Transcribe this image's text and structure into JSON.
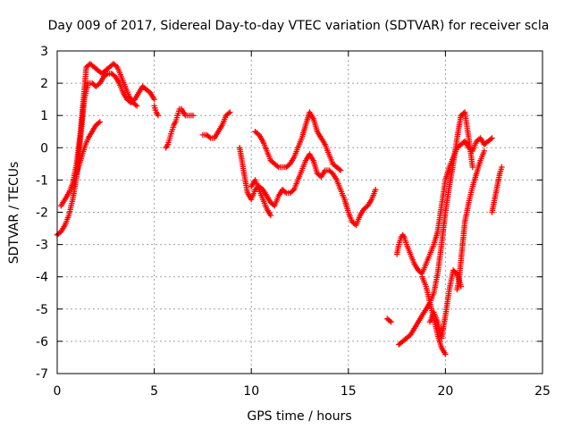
{
  "chart_data": {
    "type": "scatter",
    "title": "Day 009 of 2017, Sidereal Day-to-day VTEC variation (SDTVAR) for receiver scla",
    "xlabel": "GPS time / hours",
    "ylabel": "SDTVAR / TECUs",
    "xlim": [
      0,
      25
    ],
    "ylim": [
      -7,
      3
    ],
    "xticks": [
      "0",
      "5",
      "10",
      "15",
      "20",
      "25"
    ],
    "yticks": [
      "3",
      "2",
      "1",
      "0",
      "-1",
      "-2",
      "-3",
      "-4",
      "-5",
      "-6",
      "-7"
    ],
    "xtick_values": [
      0,
      5,
      10,
      15,
      20,
      25
    ],
    "ytick_values": [
      3,
      2,
      1,
      0,
      -1,
      -2,
      -3,
      -4,
      -5,
      -6,
      -7
    ],
    "grid": true,
    "legend": "none",
    "marker": "plus",
    "color": "#ff0000",
    "series": [
      {
        "x": [
          0.0,
          0.2,
          0.4,
          0.6,
          0.8,
          1.0,
          1.2,
          1.4,
          1.6,
          1.8,
          2.0,
          2.2,
          2.4,
          2.6,
          2.8,
          3.0,
          3.2,
          3.4,
          3.6,
          3.8,
          4.0,
          4.2,
          4.4,
          4.6,
          4.8,
          5.0
        ],
        "y": [
          -2.7,
          -2.6,
          -2.4,
          -2.1,
          -1.6,
          -0.9,
          0.3,
          1.5,
          2.0,
          2.0,
          1.9,
          2.0,
          2.2,
          2.3,
          2.3,
          2.2,
          2.0,
          1.7,
          1.5,
          1.4,
          1.5,
          1.7,
          1.9,
          1.8,
          1.7,
          1.5
        ]
      },
      {
        "x": [
          0.2,
          0.4,
          0.6,
          0.8,
          1.0,
          1.2,
          1.4,
          1.5,
          1.7,
          1.9,
          2.1,
          2.3,
          2.5,
          2.7,
          2.9,
          3.1,
          3.3,
          3.5,
          3.7,
          3.9,
          4.1
        ],
        "y": [
          -1.8,
          -1.6,
          -1.4,
          -1.1,
          -0.5,
          0.5,
          1.8,
          2.5,
          2.6,
          2.5,
          2.4,
          2.3,
          2.4,
          2.5,
          2.6,
          2.5,
          2.2,
          1.9,
          1.6,
          1.4,
          1.3
        ]
      },
      {
        "x": [
          1.0,
          1.2,
          1.4,
          1.6,
          1.8,
          2.0,
          2.2
        ],
        "y": [
          -0.8,
          -0.4,
          0.0,
          0.3,
          0.5,
          0.7,
          0.8
        ]
      },
      {
        "x": [
          5.0,
          5.1,
          5.2
        ],
        "y": [
          1.3,
          1.1,
          1.0
        ]
      },
      {
        "x": [
          5.6,
          5.7,
          5.8,
          5.9,
          6.0,
          6.1,
          6.2,
          6.3,
          6.4,
          6.5,
          6.6,
          6.8,
          7.0
        ],
        "y": [
          0.0,
          0.1,
          0.3,
          0.5,
          0.7,
          0.8,
          1.0,
          1.2,
          1.2,
          1.1,
          1.0,
          1.0,
          1.0
        ]
      },
      {
        "x": [
          7.5,
          7.7,
          7.9,
          8.1,
          8.3,
          8.5,
          8.7,
          8.9
        ],
        "y": [
          0.4,
          0.4,
          0.3,
          0.3,
          0.5,
          0.7,
          1.0,
          1.1
        ]
      },
      {
        "x": [
          9.4,
          9.6,
          9.8,
          10.0,
          10.2,
          10.4,
          10.6,
          10.8,
          11.0,
          11.2,
          11.4,
          11.6,
          11.8,
          12.0,
          12.2,
          12.4,
          12.6,
          12.8,
          13.0,
          13.2,
          13.4,
          13.6,
          13.8,
          14.0,
          14.2,
          14.4,
          14.6,
          14.8,
          15.0,
          15.2,
          15.4,
          15.6,
          15.8,
          16.0,
          16.2,
          16.4
        ],
        "y": [
          0.0,
          -0.7,
          -1.4,
          -1.6,
          -1.3,
          -1.2,
          -1.3,
          -1.5,
          -1.7,
          -1.8,
          -1.5,
          -1.3,
          -1.4,
          -1.4,
          -1.3,
          -1.0,
          -0.7,
          -0.4,
          -0.2,
          -0.4,
          -0.8,
          -0.9,
          -0.7,
          -0.7,
          -0.8,
          -1.0,
          -1.3,
          -1.6,
          -2.0,
          -2.3,
          -2.4,
          -2.1,
          -1.9,
          -1.8,
          -1.6,
          -1.3
        ]
      },
      {
        "x": [
          10.2,
          10.4,
          10.6,
          10.8,
          11.0,
          11.2,
          11.4,
          11.6,
          11.8,
          12.0,
          12.2,
          12.4,
          12.6,
          12.8,
          13.0,
          13.2,
          13.4,
          13.6,
          13.8,
          14.0,
          14.2,
          14.4,
          14.6
        ],
        "y": [
          0.5,
          0.4,
          0.2,
          -0.1,
          -0.4,
          -0.5,
          -0.6,
          -0.6,
          -0.6,
          -0.5,
          -0.3,
          0.0,
          0.3,
          0.7,
          1.1,
          0.9,
          0.5,
          0.3,
          0.1,
          -0.2,
          -0.5,
          -0.6,
          -0.7
        ]
      },
      {
        "x": [
          10.0,
          10.2,
          10.4,
          10.6,
          10.8,
          11.0
        ],
        "y": [
          -1.2,
          -1.0,
          -1.3,
          -1.6,
          -1.9,
          -2.1
        ]
      },
      {
        "x": [
          17.0,
          17.2
        ],
        "y": [
          -5.3,
          -5.4
        ]
      },
      {
        "x": [
          17.5,
          17.6,
          17.7,
          17.8,
          17.9,
          18.0,
          18.2,
          18.4,
          18.6,
          18.8,
          19.0,
          19.2,
          19.4,
          19.6,
          19.8,
          20.0,
          20.2,
          20.4,
          20.6,
          20.8,
          21.0,
          21.2,
          21.4,
          21.6,
          21.8,
          22.0,
          22.2,
          22.4
        ],
        "y": [
          -3.3,
          -3.0,
          -2.8,
          -2.7,
          -2.8,
          -3.0,
          -3.3,
          -3.6,
          -3.8,
          -3.9,
          -3.6,
          -3.3,
          -3.0,
          -2.6,
          -1.8,
          -1.0,
          -0.6,
          -0.3,
          0.0,
          0.1,
          0.2,
          0.0,
          -0.1,
          0.2,
          0.3,
          0.1,
          0.2,
          0.3
        ]
      },
      {
        "x": [
          17.6,
          17.8,
          18.0,
          18.2,
          18.4,
          18.6,
          18.8,
          19.0,
          19.2,
          19.4,
          19.6,
          19.8,
          20.0,
          20.2,
          20.4,
          20.6,
          20.8,
          21.0,
          21.2,
          21.4
        ],
        "y": [
          -6.1,
          -6.0,
          -5.9,
          -5.8,
          -5.6,
          -5.4,
          -5.2,
          -5.0,
          -4.8,
          -4.5,
          -3.9,
          -3.0,
          -2.0,
          -1.2,
          -0.5,
          0.3,
          1.0,
          1.1,
          0.3,
          -0.6
        ]
      },
      {
        "x": [
          18.8,
          19.0,
          19.2,
          19.4,
          19.6,
          19.8,
          20.0
        ],
        "y": [
          -4.0,
          -4.3,
          -4.8,
          -5.3,
          -5.8,
          -6.2,
          -6.4
        ]
      },
      {
        "x": [
          19.2,
          19.4,
          19.6,
          19.8,
          20.0,
          20.2,
          20.4,
          20.6,
          20.8
        ],
        "y": [
          -5.4,
          -5.1,
          -5.4,
          -5.9,
          -5.2,
          -4.4,
          -3.8,
          -3.9,
          -4.3
        ]
      },
      {
        "x": [
          20.6,
          20.7,
          20.8,
          20.9,
          21.0,
          21.2,
          21.4,
          21.6,
          21.8,
          22.0
        ],
        "y": [
          -4.4,
          -4.1,
          -3.5,
          -2.9,
          -2.3,
          -1.7,
          -1.2,
          -0.8,
          -0.4,
          -0.1
        ]
      },
      {
        "x": [
          22.4,
          22.5,
          22.6,
          22.7,
          22.8,
          22.9
        ],
        "y": [
          -2.0,
          -1.7,
          -1.4,
          -1.1,
          -0.8,
          -0.6
        ]
      }
    ]
  }
}
